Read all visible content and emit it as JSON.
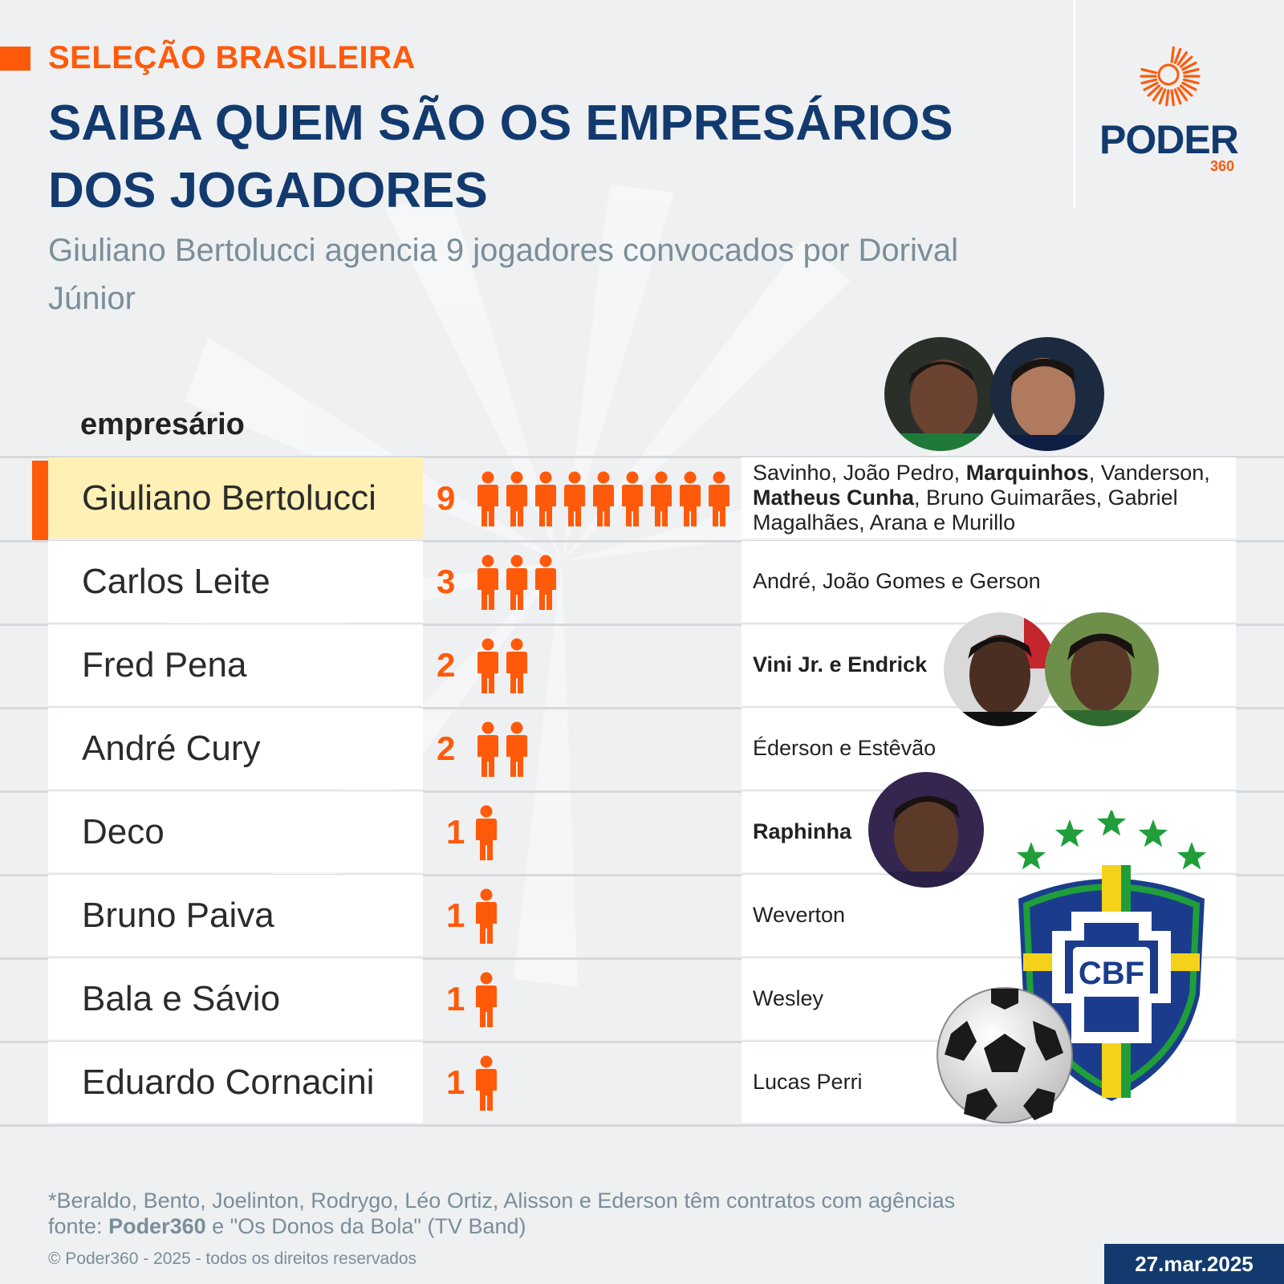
{
  "header": {
    "kicker": "SELEÇÃO BRASILEIRA",
    "title": "SAIBA QUEM SÃO OS EMPRESÁRIOS DOS JOGADORES",
    "subtitle": "Giuliano Bertolucci agencia 9 jogadores convocados por Dorival Júnior"
  },
  "logo": {
    "word": "PODER",
    "number": "360"
  },
  "colors": {
    "accent": "#ff5a0a",
    "navy": "#123a6e",
    "highlight": "#fff0b5",
    "gray_text": "#7a8e9a"
  },
  "chart_data": {
    "type": "table",
    "column_header": "empresário",
    "icon": "person-icon",
    "rows": [
      {
        "agent": "Giuliano Bertolucci",
        "count": 9,
        "highlight": true,
        "players_parts": [
          {
            "t": "Savinho, João Pedro, ",
            "b": false
          },
          {
            "t": "Marquinhos",
            "b": true
          },
          {
            "t": ", Vanderson, ",
            "b": false
          },
          {
            "t": "Matheus Cunha",
            "b": true
          },
          {
            "t": ", Bruno Guimarães, Gabriel Magalhães, Arana e Murillo",
            "b": false
          }
        ]
      },
      {
        "agent": "Carlos Leite",
        "count": 3,
        "players": "André, João Gomes e Gerson",
        "bold": false
      },
      {
        "agent": "Fred Pena",
        "count": 2,
        "players": "Vini Jr. e Endrick",
        "bold": true
      },
      {
        "agent": "André Cury",
        "count": 2,
        "players": "Éderson e Estêvão",
        "bold": false
      },
      {
        "agent": "Deco",
        "count": 1,
        "players": "Raphinha",
        "bold": true
      },
      {
        "agent": "Bruno Paiva",
        "count": 1,
        "players": "Weverton",
        "bold": false
      },
      {
        "agent": "Bala e Sávio",
        "count": 1,
        "players": "Wesley",
        "bold": false
      },
      {
        "agent": "Eduardo Cornacini",
        "count": 1,
        "players": "Lucas Perri",
        "bold": false
      }
    ]
  },
  "badge": {
    "text": "CBF",
    "stars": 5
  },
  "footer": {
    "note": "*Beraldo, Bento, Joelinton, Rodrygo, Léo Ortiz, Alisson e Ederson têm contratos com agências",
    "source_prefix": "fonte: ",
    "source_bold": "Poder360",
    "source_rest": " e \"Os Donos da Bola\" (TV Band)",
    "copyright": "© Poder360 - 2025 - todos os direitos reservados",
    "date": "27.mar.2025"
  }
}
